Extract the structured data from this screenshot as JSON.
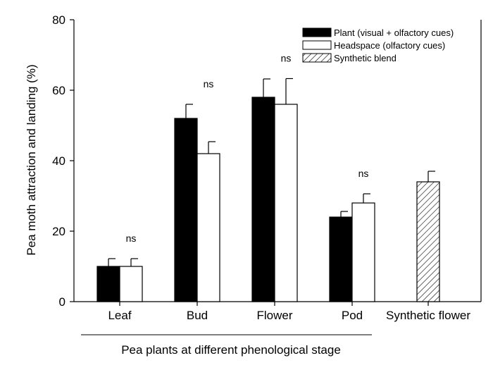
{
  "chart_data": {
    "type": "bar",
    "ylabel": "Pea moth attraction and landing (%)",
    "xlabel": "Pea plants at different phenological stage",
    "ylim": [
      0,
      80
    ],
    "yticks": [
      0,
      20,
      40,
      60,
      80
    ],
    "categories": [
      "Leaf",
      "Bud",
      "Flower",
      "Pod",
      "Synthetic flower"
    ],
    "series": [
      {
        "name": "Plant (visual + olfactory cues)",
        "fill": "#000000",
        "pattern": "solid",
        "values": [
          10,
          52,
          58,
          24,
          null
        ],
        "errors": [
          2.2,
          4,
          5.2,
          1.6,
          null
        ]
      },
      {
        "name": "Headspace (olfactory cues)",
        "fill": "#ffffff",
        "pattern": "solid",
        "values": [
          10,
          42,
          56,
          28,
          null
        ],
        "errors": [
          2.2,
          3.4,
          7.3,
          2.6,
          null
        ]
      },
      {
        "name": "Synthetic blend",
        "fill": "#ffffff",
        "pattern": "hatch",
        "values": [
          null,
          null,
          null,
          null,
          34
        ],
        "errors": [
          null,
          null,
          null,
          null,
          3
        ]
      }
    ],
    "annotations": [
      {
        "category": "Leaf",
        "text": "ns"
      },
      {
        "category": "Bud",
        "text": "ns"
      },
      {
        "category": "Flower",
        "text": "ns"
      },
      {
        "category": "Pod",
        "text": "ns"
      }
    ],
    "grouped_categories": [
      "Leaf",
      "Bud",
      "Flower",
      "Pod"
    ],
    "legend_position": "top-right",
    "grid": false
  }
}
